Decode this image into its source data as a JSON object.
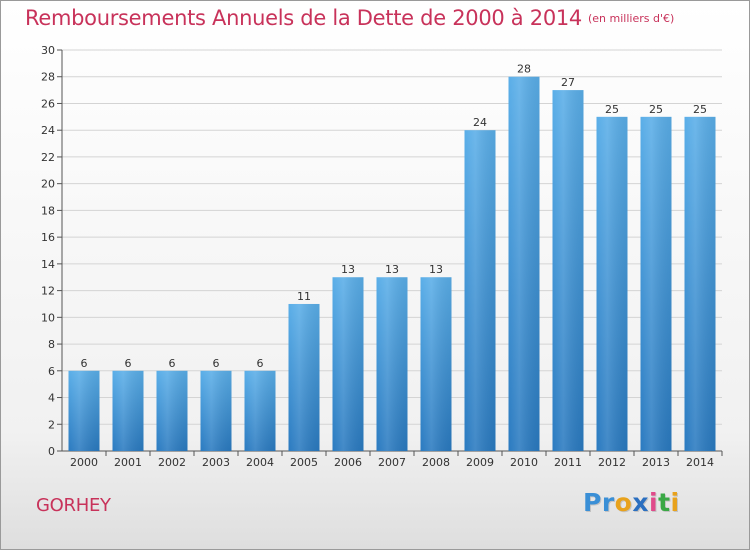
{
  "header": {
    "title": "Remboursements Annuels de la Dette de 2000 à 2014",
    "unit": "(en milliers d'€)"
  },
  "footer": {
    "commune": "GORHEY",
    "logo": [
      "P",
      "r",
      "o",
      "x",
      "i",
      "t",
      "i"
    ]
  },
  "colors": {
    "title": "#c8325a",
    "bar_top": "#5aaee8",
    "bar_bottom": "#2a7ac0",
    "grid": "#d4d4d4",
    "logo": [
      "#3a8fd6",
      "#3a8fd6",
      "#e8a21c",
      "#2b6fc0",
      "#e04a8a",
      "#3aa845",
      "#e8a21c"
    ]
  },
  "chart_data": {
    "type": "bar",
    "title": "Remboursements Annuels de la Dette de 2000 à 2014",
    "xlabel": "",
    "ylabel": "",
    "categories": [
      "2000",
      "2001",
      "2002",
      "2003",
      "2004",
      "2005",
      "2006",
      "2007",
      "2008",
      "2009",
      "2010",
      "2011",
      "2012",
      "2013",
      "2014"
    ],
    "values": [
      6,
      6,
      6,
      6,
      6,
      11,
      13,
      13,
      13,
      24,
      28,
      27,
      25,
      25,
      25
    ],
    "ylim": [
      0,
      30
    ],
    "yticks": [
      0,
      2,
      4,
      6,
      8,
      10,
      12,
      14,
      16,
      18,
      20,
      22,
      24,
      26,
      28,
      30
    ],
    "grid": true,
    "data_labels": true
  }
}
